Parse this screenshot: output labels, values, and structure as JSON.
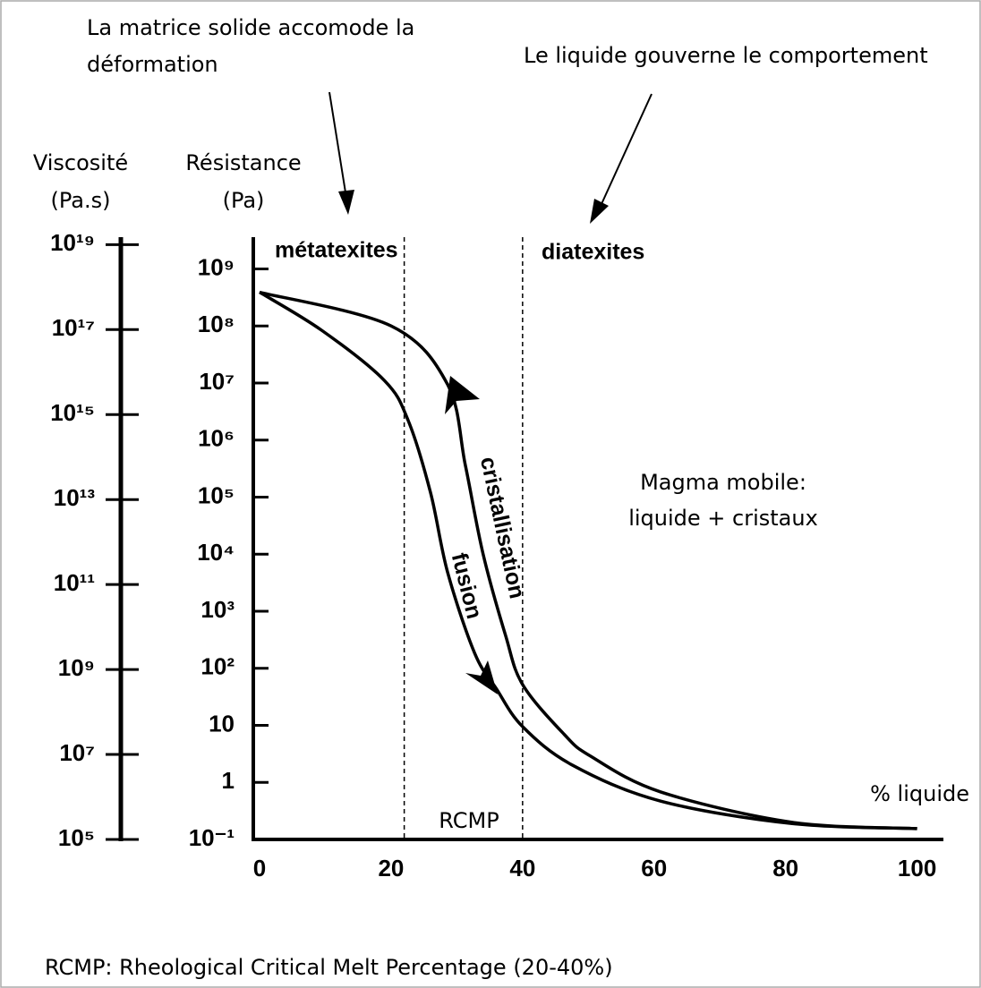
{
  "chart_data": {
    "type": "line",
    "title": [
      "La matrice solide accomode la",
      "déformation"
    ],
    "annotations": {
      "liquid": "Le liquide gouverne le comportement",
      "metatexites": "métatexites",
      "diatexites": "diatexites",
      "magma": [
        "Magma mobile:",
        "liquide + cristaux"
      ],
      "rcmp": "RCMP",
      "footnote": "RCMP: Rheological Critical Melt Percentage (20-40%)"
    },
    "xlabel": "% liquide",
    "ylabel": [
      "Résistance",
      "(Pa)"
    ],
    "y2label": [
      "Viscosité",
      "(Pa.s)"
    ],
    "log_scale": true,
    "xlim": [
      0,
      104
    ],
    "xticks": [
      0,
      20,
      40,
      60,
      80,
      100
    ],
    "ylim": [
      0.1,
      3600000000
    ],
    "yticks": [
      {
        "value": 0.1,
        "label": "10⁻¹"
      },
      1,
      10,
      {
        "value": 100,
        "label": "10²"
      },
      {
        "value": 1000,
        "label": "10³"
      },
      {
        "value": 10000,
        "label": "10⁴"
      },
      {
        "value": 100000,
        "label": "10⁵"
      },
      {
        "value": 1000000,
        "label": "10⁶"
      },
      {
        "value": 10000000,
        "label": "10⁷"
      },
      {
        "value": 100000000,
        "label": "10⁸"
      },
      {
        "value": 1000000000,
        "label": "10⁹"
      }
    ],
    "y2lim": [
      100000,
      15000000000000000000
    ],
    "y2ticks": [
      {
        "value": 100000,
        "label": "10⁵"
      },
      {
        "value": 10000000,
        "label": "10⁷"
      },
      {
        "value": 1000000000,
        "label": "10⁹"
      },
      {
        "value": 100000000000,
        "label": "10¹¹"
      },
      {
        "value": 10000000000000,
        "label": "10¹³"
      },
      {
        "value": 1000000000000000,
        "label": "10¹⁵"
      },
      {
        "value": 100000000000000000,
        "label": "10¹⁷"
      },
      {
        "value": 10000000000000000000,
        "label": "10¹⁹"
      }
    ],
    "vlines": [
      22,
      40
    ],
    "series": [
      {
        "name": "fusion",
        "color": "#000000",
        "x": [
          0,
          9.5,
          19,
          22.6,
          26,
          28.6,
          32.7,
          36,
          40,
          47.6,
          61,
          81,
          100
        ],
        "values": [
          390000000,
          83000000,
          11000000,
          2200000,
          120000,
          4800,
          185,
          44,
          9.5,
          2,
          0.47,
          0.19,
          0.155
        ]
      },
      {
        "name": "cristallisation",
        "color": "#000000",
        "x": [
          0,
          20,
          28.6,
          31.3,
          34,
          37.4,
          40,
          46.3,
          50.3,
          61,
          81,
          100
        ],
        "values": [
          390000000,
          100000000,
          9400000,
          360000,
          10000,
          380,
          52,
          7,
          2.9,
          0.68,
          0.2,
          0.155
        ]
      }
    ]
  }
}
